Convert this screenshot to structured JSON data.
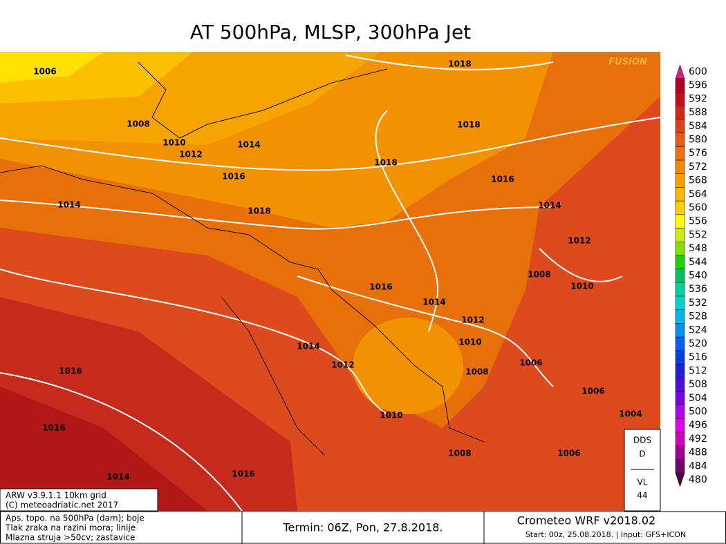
{
  "title": "AT 500hPa, MLSP, 300hPa Jet",
  "watermark": "FUSION",
  "isobar_labels": [
    "1006",
    "1018",
    "1008",
    "1018",
    "1010",
    "1012",
    "1014",
    "1018",
    "1016",
    "1016",
    "1014",
    "1018",
    "1014",
    "1012",
    "1008",
    "1010",
    "1016",
    "1014",
    "1012",
    "1010",
    "1014",
    "1012",
    "1008",
    "1006",
    "1016",
    "1006",
    "1004",
    "1010",
    "1016",
    "1008",
    "1006",
    "1014",
    "1016"
  ],
  "colorbar": {
    "levels": [
      600,
      596,
      592,
      588,
      584,
      580,
      576,
      572,
      568,
      564,
      560,
      556,
      552,
      548,
      544,
      540,
      536,
      532,
      528,
      524,
      520,
      516,
      512,
      508,
      504,
      500,
      496,
      492,
      488,
      484,
      480
    ],
    "colors": [
      "#d0207a",
      "#b0002a",
      "#c01020",
      "#d02818",
      "#e04018",
      "#e85818",
      "#f07010",
      "#f08808",
      "#f8a000",
      "#f8b800",
      "#f8d000",
      "#ffff00",
      "#c8f000",
      "#80e000",
      "#20d000",
      "#00c060",
      "#00d0a0",
      "#00d0d0",
      "#00b8e8",
      "#0090f0",
      "#0060f0",
      "#0040e0",
      "#2020d0",
      "#5010d0",
      "#8000e0",
      "#b000f0",
      "#e000f0",
      "#d000c0",
      "#a00090",
      "#700070",
      "#500040"
    ]
  },
  "info_box": [
    "ARW v3.9.1.1 10km grid",
    "(C) meteoadriatic.net 2017"
  ],
  "legend_lines": [
    "Aps. topo. na 500hPa (dam); boje",
    "Tlak zraka na razini mora; linije",
    "Mlazna struja >50cv; zastavice"
  ],
  "termin": "Termin: 06Z, Pon, 27.8.2018.",
  "model": "Crometeo WRF v2018.02",
  "start": "Start: 00z, 25.08.2018. | Input: GFS+ICON",
  "side_box": [
    "DDS",
    "D",
    "VL",
    "44"
  ]
}
